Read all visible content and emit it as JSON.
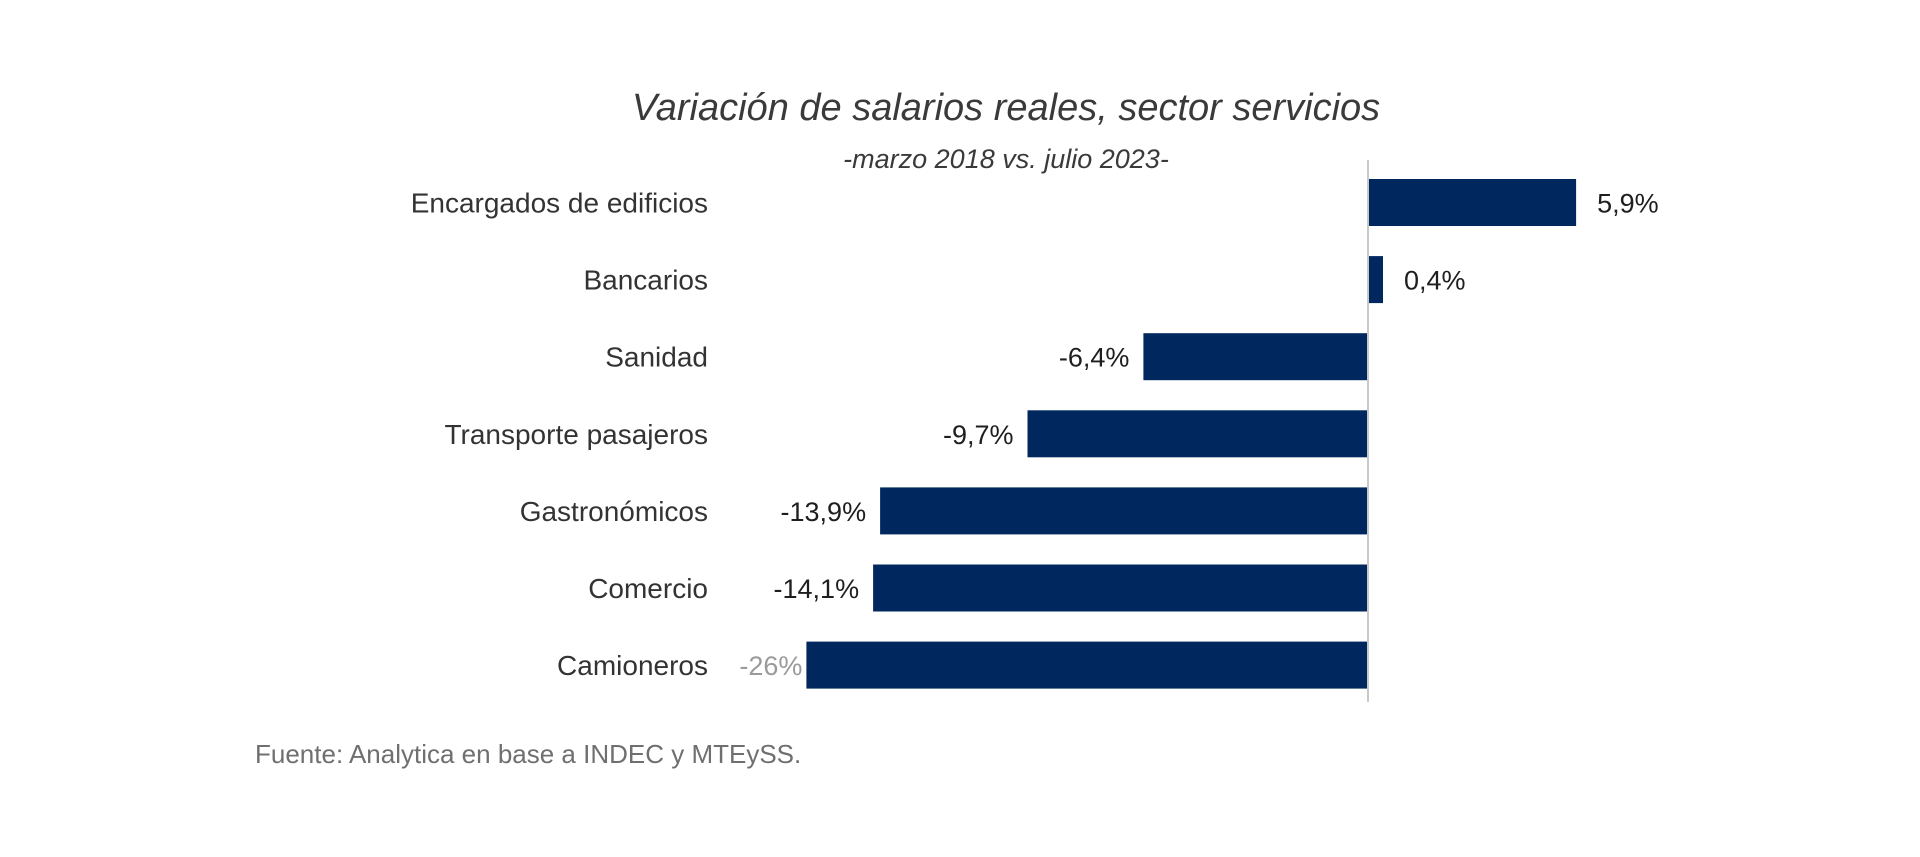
{
  "chart_data": {
    "type": "bar",
    "orientation": "horizontal",
    "title": "Variación de salarios reales, sector servicios",
    "subtitle": "-marzo 2018 vs. julio 2023-",
    "categories": [
      "Encargados de edificios",
      "Bancarios",
      "Sanidad",
      "Transporte pasajeros",
      "Gastronómicos",
      "Comercio",
      "Camioneros"
    ],
    "values": [
      5.9,
      0.4,
      -6.4,
      -9.7,
      -13.9,
      -14.1,
      -26
    ],
    "value_labels": [
      "5,9%",
      "0,4%",
      "-6,4%",
      "-9,7%",
      "-13,9%",
      "-14,1%",
      "-26%"
    ],
    "notes": "Camioneros bar is visually truncated (axis break); its label is shown in grey",
    "truncated_display_limit": -16,
    "xlabel": "",
    "ylabel": "",
    "unit": "%",
    "grid": false,
    "legend": "none",
    "bar_color": "#00285e",
    "axis_color": "#c8c8c8",
    "source": "Fuente: Analytica en base a INDEC y MTEySS."
  }
}
